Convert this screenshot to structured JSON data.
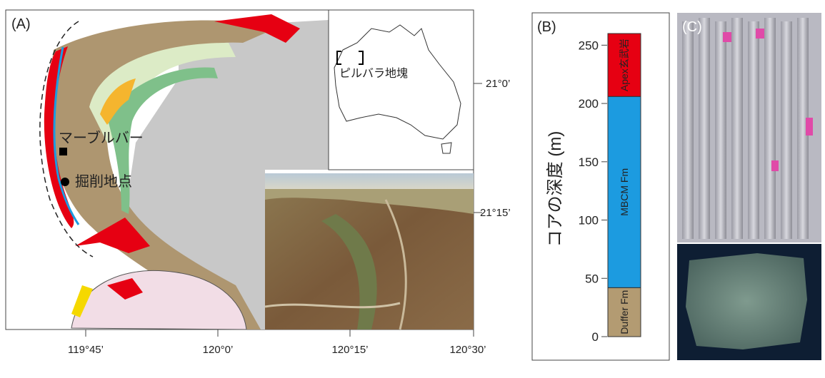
{
  "panel_a": {
    "label": "(A)",
    "places": {
      "town": "マーブルバー",
      "drill_site": "掘削地点",
      "craton": "ピルバラ地塊"
    },
    "lon_labels": [
      "119°45’",
      "120°0’",
      "120°15’",
      "120°30’"
    ],
    "lat_labels": [
      "21°0’",
      "21°15’"
    ]
  },
  "panel_b": {
    "label": "(B)",
    "axis_label": "コアの深度 (m)",
    "ylim": [
      0,
      260
    ],
    "yticks": [
      0,
      50,
      100,
      150,
      200,
      250
    ],
    "units": [
      {
        "name": "Duffer Fm",
        "thickness": 42,
        "color": "#b39b72"
      },
      {
        "name": "MBCM Fm",
        "thickness": 164,
        "color": "#1c9be0"
      },
      {
        "name": "Apex玄武岩",
        "thickness": 54,
        "color": "#e60012"
      }
    ]
  },
  "panel_c": {
    "label": "(C)"
  }
}
